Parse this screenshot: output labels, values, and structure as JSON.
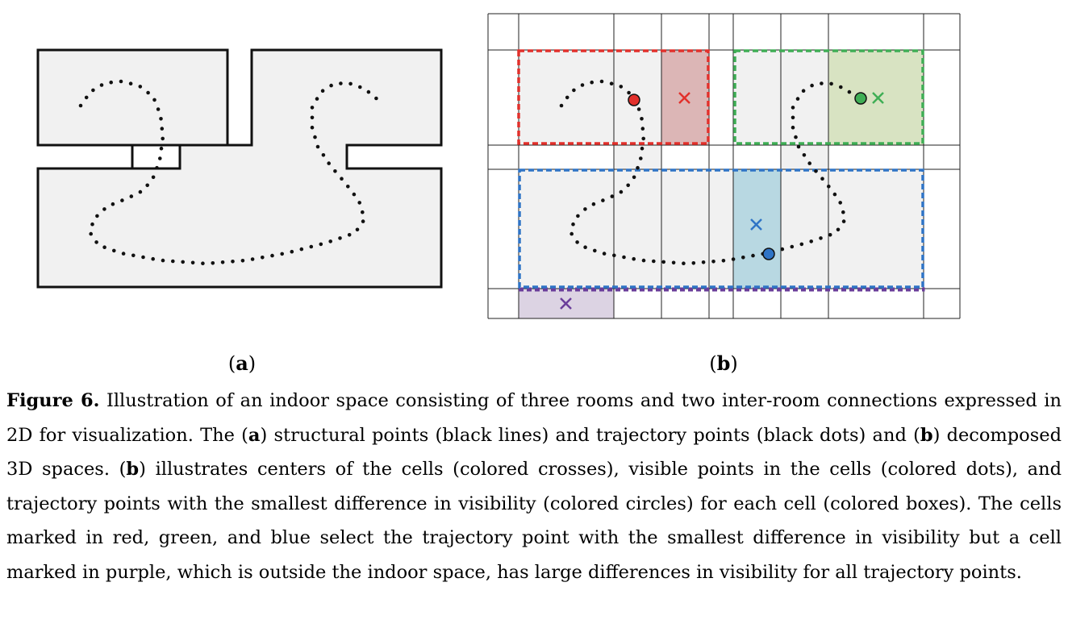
{
  "figure": {
    "panel_a_label": "a",
    "panel_b_label": "b",
    "cells": [
      {
        "color_name": "red",
        "stroke": "#e2302b",
        "fill": "#dcb6b6",
        "cross": "#e2302b"
      },
      {
        "color_name": "green",
        "stroke": "#3fae55",
        "fill": "#d8e3c2",
        "cross": "#3fae55"
      },
      {
        "color_name": "blue",
        "stroke": "#2f74c6",
        "fill": "#b8d8e2",
        "cross": "#2f74c6"
      },
      {
        "color_name": "purple",
        "stroke": "#6a3d9a",
        "fill": "#dcd3e3",
        "cross": "#6a3d9a"
      }
    ],
    "colors": {
      "floor": "#f1f1f1",
      "wall": "#111111",
      "grid": "#222222",
      "dot": "#111111"
    }
  },
  "caption": {
    "label": "Figure 6.",
    "text_1": " Illustration of an indoor space consisting of three rooms and two inter-room connections expressed in 2D for visualization. The (",
    "ref_a": "a",
    "text_2": ") structural points (black lines) and trajectory points (black dots) and (",
    "ref_b1": "b",
    "text_3": ") decomposed 3D spaces. (",
    "ref_b2": "b",
    "text_4": ") illustrates centers of the cells (colored crosses), visible points in the cells (colored dots), and trajectory points with the smallest difference in visibility (colored circles) for each cell (colored boxes). The cells marked in red, green, and blue select the trajectory point with the smallest difference in visibility but a cell marked in purple, which is outside the indoor space, has large differences in visibility for all trajectory points."
  }
}
